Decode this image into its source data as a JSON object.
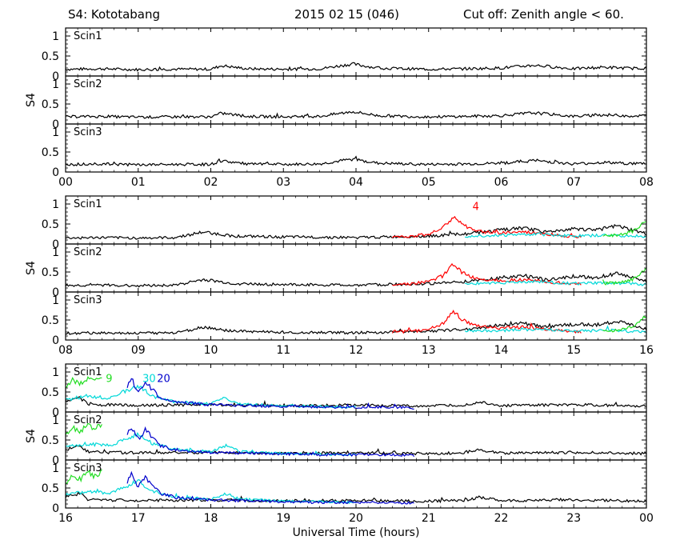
{
  "header": {
    "station": "S4: Kototabang",
    "date": "2015 02 15 (046)",
    "cutoff": "Cut off: Zenith angle < 60."
  },
  "chart_data": {
    "type": "line",
    "title": "S4: Kototabang",
    "xlabel": "Universal Time (hours)",
    "ylabel": "S4",
    "ylim": [
      0,
      1.2
    ],
    "yticks": [
      0,
      0.5,
      1
    ],
    "yticklabels": [
      "0",
      "0.5",
      "1"
    ],
    "grid": false,
    "groups": [
      {
        "xlim": [
          0,
          8
        ],
        "xticklabels": [
          "00",
          "01",
          "02",
          "03",
          "04",
          "05",
          "06",
          "07",
          "08"
        ],
        "panels": [
          "Scin1",
          "Scin2",
          "Scin3"
        ],
        "annotations": [],
        "series": [
          {
            "name": "",
            "color": "#000000",
            "x": [
              0,
              0.5,
              1,
              1.5,
              2,
              2.15,
              2.5,
              3,
              3.5,
              3.95,
              4.3,
              4.7,
              5,
              5.5,
              6,
              6.45,
              7,
              7.4,
              7.8,
              8
            ],
            "y": [
              0.17,
              0.18,
              0.16,
              0.17,
              0.17,
              0.26,
              0.18,
              0.17,
              0.18,
              0.3,
              0.2,
              0.18,
              0.17,
              0.18,
              0.2,
              0.27,
              0.18,
              0.22,
              0.19,
              0.2
            ]
          }
        ]
      },
      {
        "xlim": [
          8,
          16
        ],
        "xticklabels": [
          "08",
          "09",
          "10",
          "11",
          "12",
          "13",
          "14",
          "15",
          "16"
        ],
        "panels": [
          "Scin1",
          "Scin2",
          "Scin3"
        ],
        "annotations": [
          {
            "text": "4",
            "x": 13.65,
            "y": 0.95,
            "color": "#ff0000"
          }
        ],
        "series": [
          {
            "name": "",
            "color": "#000000",
            "x": [
              8,
              8.5,
              9,
              9.5,
              9.9,
              10.3,
              10.8,
              11.5,
              12,
              12.5,
              13,
              13.5,
              14,
              14.3,
              14.6,
              15,
              15.3,
              15.6,
              16
            ],
            "y": [
              0.15,
              0.16,
              0.15,
              0.16,
              0.3,
              0.2,
              0.18,
              0.17,
              0.16,
              0.18,
              0.2,
              0.25,
              0.35,
              0.4,
              0.3,
              0.38,
              0.35,
              0.45,
              0.25
            ]
          },
          {
            "name": "4",
            "color": "#ff0000",
            "x": [
              12.5,
              12.8,
              13.0,
              13.2,
              13.35,
              13.45,
              13.6,
              13.8,
              14.0,
              14.3,
              14.6,
              14.9,
              15.1
            ],
            "y": [
              0.18,
              0.2,
              0.25,
              0.4,
              0.7,
              0.5,
              0.35,
              0.3,
              0.28,
              0.3,
              0.25,
              0.2,
              0.18
            ]
          },
          {
            "name": "",
            "color": "#00d8d8",
            "x": [
              13.5,
              14.0,
              14.5,
              15.0,
              15.5,
              16.0
            ],
            "y": [
              0.2,
              0.22,
              0.25,
              0.2,
              0.22,
              0.18
            ]
          },
          {
            "name": "",
            "color": "#22dd22",
            "x": [
              15.4,
              15.6,
              15.8,
              15.95,
              16.0
            ],
            "y": [
              0.2,
              0.22,
              0.3,
              0.5,
              0.6
            ]
          }
        ]
      },
      {
        "xlim": [
          16,
          24
        ],
        "xticklabels": [
          "16",
          "17",
          "18",
          "19",
          "20",
          "21",
          "22",
          "23",
          "00"
        ],
        "panels": [
          "Scin1",
          "Scin2",
          "Scin3"
        ],
        "annotations": [
          {
            "text": "9",
            "x": 16.6,
            "y": 0.85,
            "color": "#22dd22"
          },
          {
            "text": "30",
            "x": 17.15,
            "y": 0.85,
            "color": "#00d8d8"
          },
          {
            "text": "20",
            "x": 17.35,
            "y": 0.85,
            "color": "#0000cc"
          }
        ],
        "series": [
          {
            "name": "9",
            "color": "#22dd22",
            "x": [
              16.0,
              16.1,
              16.2,
              16.3,
              16.4,
              16.5
            ],
            "y": [
              0.6,
              0.8,
              0.7,
              0.85,
              0.75,
              0.9
            ]
          },
          {
            "name": "",
            "color": "#000000",
            "x": [
              16.0,
              16.2,
              16.3,
              16.5,
              17,
              18,
              19,
              20,
              21,
              21.5,
              21.7,
              22,
              23,
              24
            ],
            "y": [
              0.25,
              0.35,
              0.2,
              0.18,
              0.17,
              0.18,
              0.16,
              0.17,
              0.15,
              0.17,
              0.25,
              0.16,
              0.18,
              0.15
            ]
          },
          {
            "name": "30",
            "color": "#00d8d8",
            "x": [
              16.0,
              16.3,
              16.6,
              16.8,
              17.0,
              17.2,
              17.5,
              18.0,
              18.2,
              18.4,
              19.0,
              20.0
            ],
            "y": [
              0.3,
              0.4,
              0.35,
              0.5,
              0.65,
              0.4,
              0.25,
              0.2,
              0.35,
              0.2,
              0.15,
              0.12
            ]
          },
          {
            "name": "20",
            "color": "#0000cc",
            "x": [
              16.85,
              16.9,
              17.0,
              17.1,
              17.2,
              17.3,
              17.5,
              18.0,
              19.5,
              20.5,
              20.8
            ],
            "y": [
              0.6,
              0.85,
              0.5,
              0.75,
              0.55,
              0.35,
              0.25,
              0.18,
              0.12,
              0.12,
              0.1
            ]
          }
        ]
      }
    ]
  }
}
